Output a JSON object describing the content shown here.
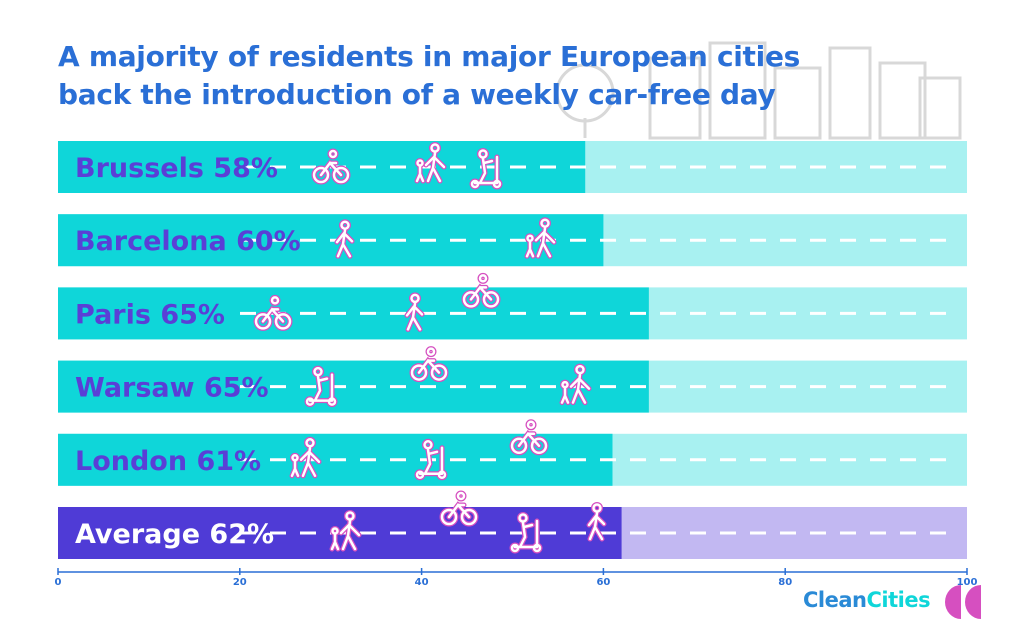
{
  "title_lines": [
    "A majority of residents in major European cities",
    "back the introduction of a weekly car-free day"
  ],
  "chart_data": {
    "type": "bar",
    "orientation": "horizontal",
    "categories": [
      "Brussels",
      "Barcelona",
      "Paris",
      "Warsaw",
      "London",
      "Average"
    ],
    "values": [
      58,
      60,
      65,
      65,
      61,
      62
    ],
    "labels": [
      "Brussels 58%",
      "Barcelona 60%",
      "Paris 65%",
      "Warsaw 65%",
      "London 61%",
      "Average 62%"
    ],
    "xlim": [
      0,
      100
    ],
    "xticks": [
      "0",
      "20",
      "40",
      "60",
      "80",
      "100"
    ],
    "grid": false,
    "colors": {
      "bar": "#0fd6d9",
      "bar_track": "#a8f1f1",
      "average_bar": "#4f3bd6",
      "average_track": "#c2b8f2",
      "label": "#5a3fd6",
      "average_label": "#ffffff",
      "axis": "#2a6fd6",
      "icon": "#d64fc0"
    },
    "icons": [
      [
        "bicycle-icon",
        "parent-child-icon",
        "scooter-icon"
      ],
      [
        "pedestrian-icon",
        "parent-child-icon"
      ],
      [
        "bicycle-icon",
        "pedestrian-icon",
        "bicycle-icon"
      ],
      [
        "scooter-icon",
        "bicycle-icon",
        "parent-child-icon"
      ],
      [
        "parent-child-icon",
        "scooter-icon",
        "bicycle-icon"
      ],
      [
        "parent-child-icon",
        "bicycle-icon",
        "scooter-icon",
        "pedestrian-icon"
      ]
    ]
  },
  "logo": {
    "part1": "Clean",
    "part2": "Cities",
    "color1": "#2a8ad6",
    "color2": "#0fd6d9",
    "mark_color": "#d64fc0"
  }
}
